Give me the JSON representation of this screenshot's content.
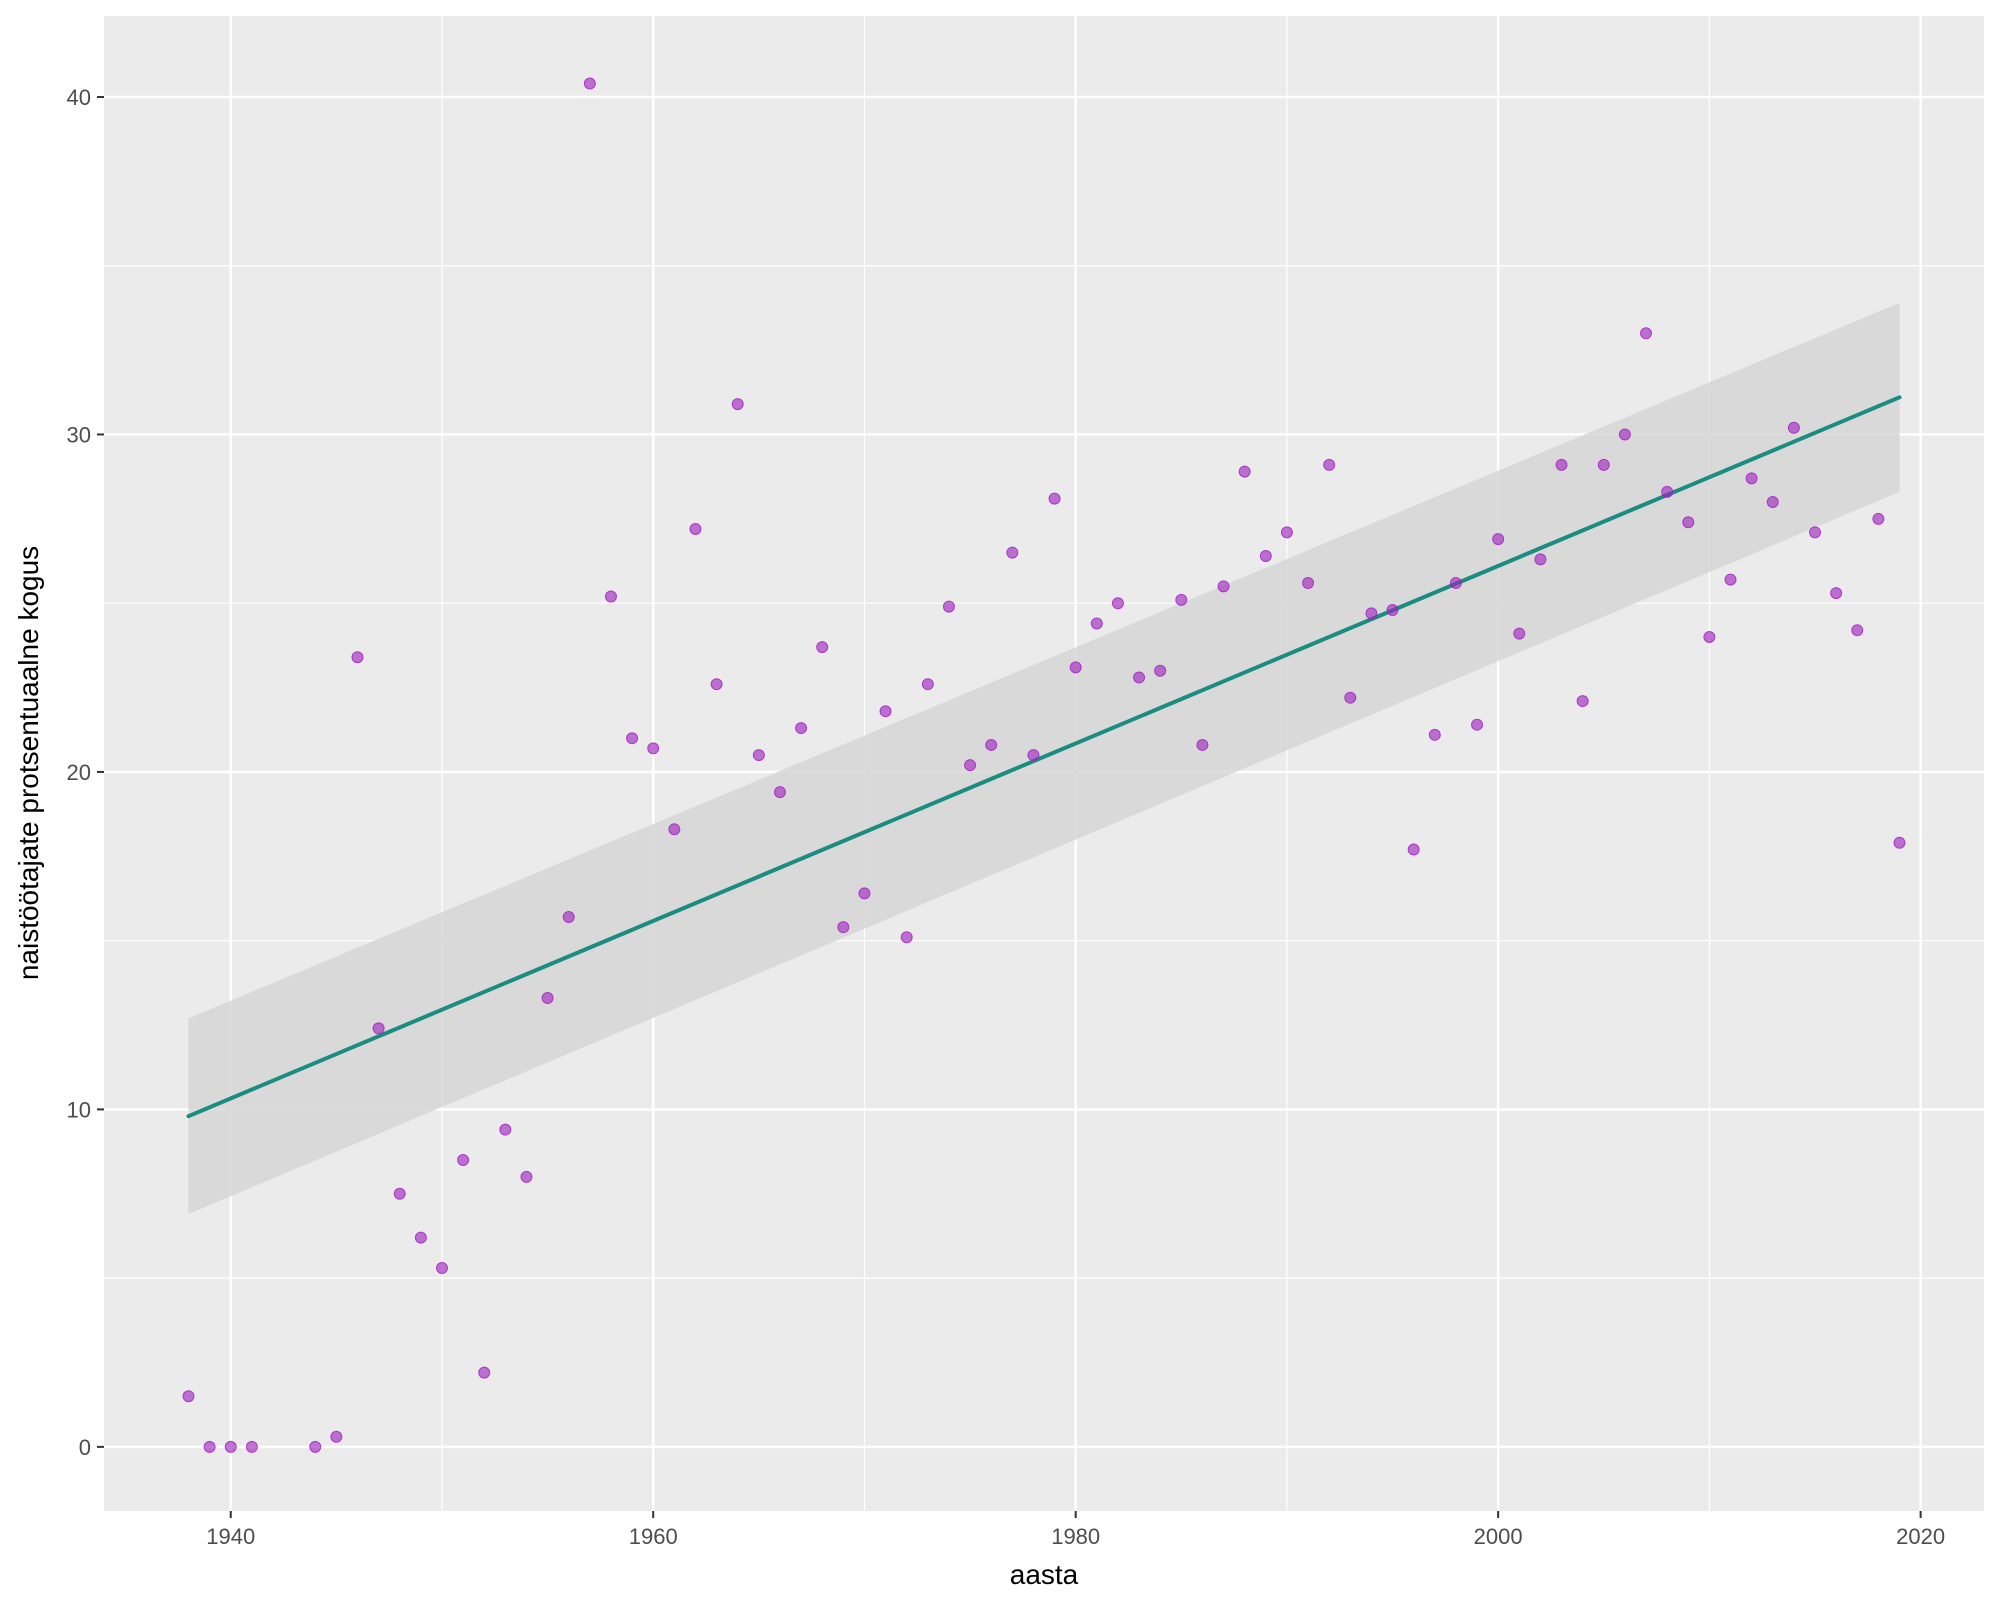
{
  "chart_data": {
    "type": "scatter",
    "xlabel": "aasta",
    "ylabel": "naistöötajate protsentuaalne kogus",
    "xlim": [
      1934.0,
      2023.0
    ],
    "ylim": [
      -1.9,
      42.4
    ],
    "x_ticks": [
      1940,
      1960,
      1980,
      2000,
      2020
    ],
    "y_ticks": [
      0,
      10,
      20,
      30,
      40
    ],
    "grid": true,
    "legend": "none",
    "colors": {
      "panel_background": "#EBEBEB",
      "grid": "#FFFFFF",
      "points": "#A020C0",
      "trend_line": "#1A8C80",
      "confidence_band": "#D6D6D6"
    },
    "series": [
      {
        "kind": "points",
        "x": [
          1938,
          1939,
          1940,
          1941,
          1944,
          1945,
          1946,
          1947,
          1948,
          1949,
          1950,
          1951,
          1952,
          1953,
          1954,
          1955,
          1956,
          1957,
          1958,
          1959,
          1960,
          1961,
          1962,
          1963,
          1964,
          1965,
          1966,
          1967,
          1968,
          1969,
          1970,
          1971,
          1972,
          1973,
          1974,
          1975,
          1976,
          1977,
          1978,
          1979,
          1980,
          1981,
          1982,
          1983,
          1984,
          1985,
          1986,
          1987,
          1988,
          1989,
          1990,
          1991,
          1992,
          1993,
          1994,
          1995,
          1996,
          1997,
          1998,
          1999,
          2000,
          2001,
          2002,
          2003,
          2004,
          2005,
          2006,
          2007,
          2008,
          2009,
          2010,
          2011,
          2012,
          2013,
          2014,
          2015,
          2016,
          2017,
          2018,
          2019
        ],
        "y": [
          1.5,
          0.0,
          0.0,
          0.0,
          0.0,
          0.3,
          23.4,
          12.4,
          7.5,
          6.2,
          5.3,
          8.5,
          2.2,
          9.4,
          8.0,
          13.3,
          15.7,
          40.4,
          25.2,
          21.0,
          20.7,
          18.3,
          27.2,
          22.6,
          30.9,
          20.5,
          19.4,
          21.3,
          23.7,
          15.4,
          16.4,
          21.8,
          15.1,
          22.6,
          24.9,
          20.2,
          20.8,
          26.5,
          20.5,
          28.1,
          23.1,
          24.4,
          25.0,
          22.8,
          23.0,
          25.1,
          20.8,
          25.5,
          28.9,
          26.4,
          27.1,
          25.6,
          29.1,
          22.2,
          24.7,
          24.8,
          17.7,
          21.1,
          25.6,
          21.4,
          26.9,
          24.1,
          26.3,
          29.1,
          22.1,
          29.1,
          30.0,
          33.0,
          28.3,
          27.4,
          24.0,
          25.7,
          28.7,
          28.0,
          30.2,
          27.1,
          25.3,
          24.2,
          27.5,
          17.9
        ]
      },
      {
        "kind": "linear_fit",
        "x": [
          1938,
          2019
        ],
        "y": [
          9.8,
          31.1
        ],
        "ci_lower": [
          6.9,
          28.3
        ],
        "ci_upper": [
          12.7,
          33.9
        ]
      }
    ]
  }
}
